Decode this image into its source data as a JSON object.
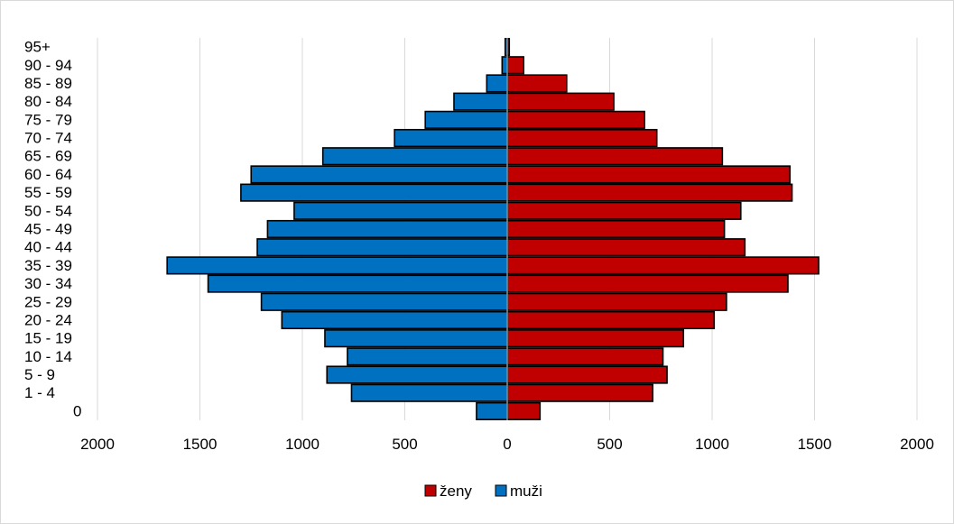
{
  "chart_data": {
    "type": "bar",
    "orientation": "horizontal",
    "layout": "population-pyramid",
    "categories": [
      "0",
      "1 - 4",
      "5 - 9",
      "10 - 14",
      "15 - 19",
      "20 - 24",
      "25 - 29",
      "30 - 34",
      "35 - 39",
      "40 - 44",
      "45 - 49",
      "50 - 54",
      "55 - 59",
      "60 - 64",
      "65 - 69",
      "70 - 74",
      "75 - 79",
      "80 - 84",
      "85 - 89",
      "90 - 94",
      "95+"
    ],
    "series": [
      {
        "name": "ženy",
        "color": "#c00000",
        "side": "right",
        "values": [
          160,
          710,
          780,
          760,
          860,
          1010,
          1070,
          1370,
          1520,
          1160,
          1060,
          1140,
          1390,
          1380,
          1050,
          730,
          670,
          520,
          290,
          80,
          10
        ]
      },
      {
        "name": "muži",
        "color": "#0070c0",
        "side": "left",
        "values": [
          150,
          760,
          880,
          780,
          890,
          1100,
          1200,
          1460,
          1660,
          1220,
          1170,
          1040,
          1300,
          1250,
          900,
          550,
          400,
          260,
          100,
          25,
          10
        ]
      }
    ],
    "xlim": [
      -2000,
      2000
    ],
    "xticks": [
      -2000,
      -1500,
      -1000,
      -500,
      0,
      500,
      1000,
      1500,
      2000
    ],
    "xtick_labels": [
      "2000",
      "1500",
      "1000",
      "500",
      "0",
      "500",
      "1000",
      "1500",
      "2000"
    ],
    "grid": "vertical",
    "legend": {
      "placement": "bottom-center",
      "entries": [
        "ženy",
        "muži"
      ]
    },
    "title": "",
    "xlabel": "",
    "ylabel": ""
  }
}
